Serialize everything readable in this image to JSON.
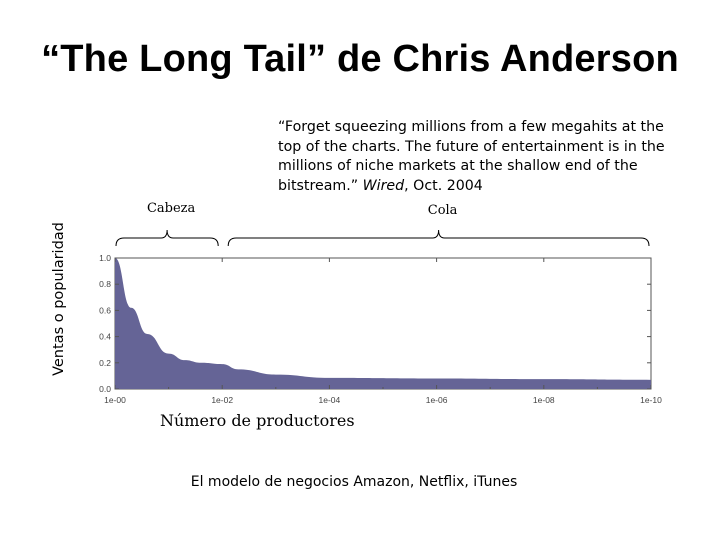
{
  "title": "“The Long Tail” de Chris Anderson",
  "quote": {
    "text": "“Forget squeezing millions from a few megahits at the top of the charts. The future of entertainment is in the millions of niche markets at the shallow end of the bitstream.” ",
    "source": "Wired",
    "date": ", Oct. 2004"
  },
  "footer": "El modelo de negocios Amazon, Netflix, iTunes",
  "colors": {
    "area": "#656496",
    "axis": "#555555"
  },
  "chart_data": {
    "type": "area",
    "xlabel": "Número de productores",
    "ylabel": "Ventas o popularidad",
    "xscale": "log",
    "xlim": [
      1,
      1e-10
    ],
    "ylim": [
      0,
      1.0
    ],
    "x_ticks": [
      "1e-00",
      "1e-02",
      "1e-04",
      "1e-06",
      "1e-08",
      "1e-10"
    ],
    "y_ticks": [
      "0.0",
      "0.2",
      "0.4",
      "0.6",
      "0.8",
      "1.0"
    ],
    "x": [
      1,
      0.5,
      0.25,
      0.1,
      0.05,
      0.025,
      0.01,
      0.005,
      0.001,
      0.0001,
      1e-06,
      1e-08,
      1e-10
    ],
    "values": [
      1.0,
      0.62,
      0.42,
      0.27,
      0.22,
      0.2,
      0.19,
      0.15,
      0.11,
      0.085,
      0.08,
      0.075,
      0.07
    ],
    "annotations": [
      {
        "label": "Cabeza",
        "from": 1,
        "to": 0.01
      },
      {
        "label": "Cola",
        "from": 0.01,
        "to": 1e-10
      }
    ]
  }
}
